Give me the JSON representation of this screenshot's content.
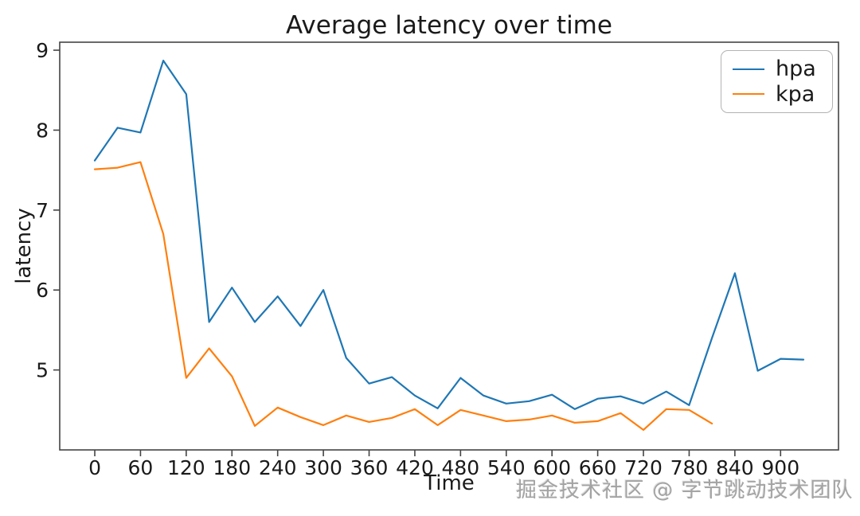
{
  "watermark": "掘金技术社区 @ 字节跳动技术团队",
  "chart_data": {
    "type": "line",
    "title": "Average latency over time",
    "xlabel": "Time",
    "ylabel": "latency",
    "xlim": [
      -46,
      976
    ],
    "ylim": [
      4.0,
      9.1
    ],
    "x_ticks": [
      0,
      60,
      120,
      180,
      240,
      300,
      360,
      420,
      480,
      540,
      600,
      660,
      720,
      780,
      840,
      900
    ],
    "y_ticks": [
      5,
      6,
      7,
      8,
      9
    ],
    "grid": false,
    "legend_position": "upper right",
    "series": [
      {
        "name": "hpa",
        "color": "#1f77b4",
        "x": [
          0,
          30,
          60,
          90,
          120,
          150,
          180,
          210,
          240,
          270,
          300,
          330,
          360,
          390,
          420,
          450,
          480,
          510,
          540,
          570,
          600,
          630,
          660,
          690,
          720,
          750,
          780,
          810,
          840,
          870,
          900,
          930
        ],
        "values": [
          7.62,
          8.03,
          7.97,
          8.87,
          8.45,
          5.6,
          6.03,
          5.6,
          5.92,
          5.55,
          6.0,
          5.15,
          4.83,
          4.91,
          4.68,
          4.52,
          4.9,
          4.68,
          4.58,
          4.61,
          4.69,
          4.51,
          4.64,
          4.67,
          4.58,
          4.73,
          4.56,
          5.4,
          6.21,
          4.99,
          5.14,
          5.13
        ]
      },
      {
        "name": "kpa",
        "color": "#ff7f0e",
        "x": [
          0,
          30,
          60,
          90,
          120,
          150,
          180,
          210,
          240,
          270,
          300,
          330,
          360,
          390,
          420,
          450,
          480,
          510,
          540,
          570,
          600,
          630,
          660,
          690,
          720,
          750,
          780,
          810
        ],
        "values": [
          7.51,
          7.53,
          7.6,
          6.7,
          4.9,
          5.27,
          4.92,
          4.3,
          4.53,
          4.41,
          4.31,
          4.43,
          4.35,
          4.4,
          4.51,
          4.31,
          4.5,
          4.43,
          4.36,
          4.38,
          4.43,
          4.34,
          4.36,
          4.46,
          4.25,
          4.51,
          4.5,
          4.33
        ]
      }
    ]
  }
}
